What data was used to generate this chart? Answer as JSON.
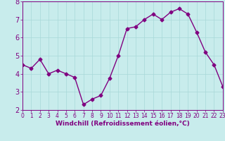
{
  "x": [
    0,
    1,
    2,
    3,
    4,
    5,
    6,
    7,
    8,
    9,
    10,
    11,
    12,
    13,
    14,
    15,
    16,
    17,
    18,
    19,
    20,
    21,
    22,
    23
  ],
  "y": [
    4.5,
    4.3,
    4.8,
    4.0,
    4.2,
    4.0,
    3.8,
    2.3,
    2.6,
    2.8,
    3.75,
    5.0,
    6.5,
    6.6,
    7.0,
    7.3,
    7.0,
    7.4,
    7.6,
    7.3,
    6.3,
    5.2,
    4.5,
    3.3
  ],
  "line_color": "#800080",
  "marker": "D",
  "marker_size": 2.5,
  "bg_color": "#c8ecec",
  "grid_color": "#a8d8d8",
  "xlabel": "Windchill (Refroidissement éolien,°C)",
  "ylim": [
    2,
    8
  ],
  "xlim": [
    0,
    23
  ],
  "yticks": [
    2,
    3,
    4,
    5,
    6,
    7,
    8
  ],
  "xticks": [
    0,
    1,
    2,
    3,
    4,
    5,
    6,
    7,
    8,
    9,
    10,
    11,
    12,
    13,
    14,
    15,
    16,
    17,
    18,
    19,
    20,
    21,
    22,
    23
  ],
  "xlabel_fontsize": 6.5,
  "ytick_fontsize": 7,
  "xtick_fontsize": 5.5,
  "line_width": 1.0
}
